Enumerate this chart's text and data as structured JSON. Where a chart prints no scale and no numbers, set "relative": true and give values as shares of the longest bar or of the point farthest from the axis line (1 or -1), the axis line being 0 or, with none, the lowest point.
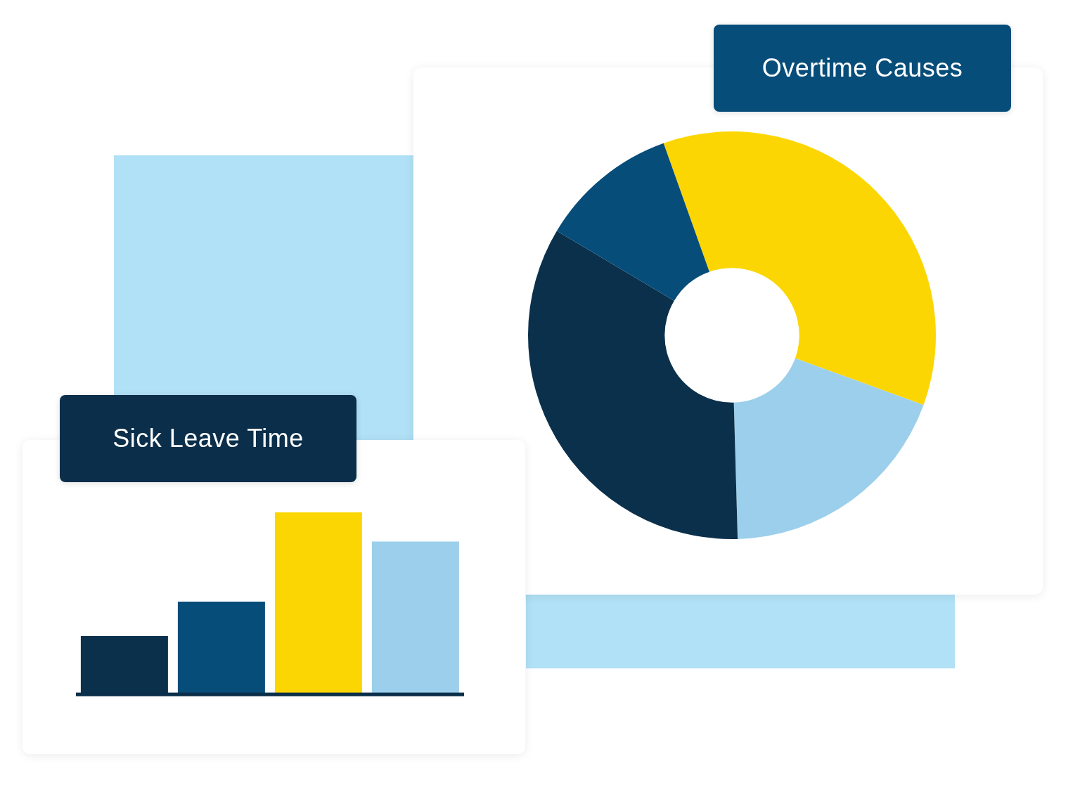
{
  "chart_data": [
    {
      "type": "donut",
      "title": "Overtime Causes",
      "categories": [
        null,
        null,
        null,
        null
      ],
      "values": [
        36,
        19,
        34,
        11
      ],
      "colors": [
        "#fcd602",
        "#9ccfeb",
        "#0b304b",
        "#074d7a"
      ]
    },
    {
      "type": "bar",
      "title": "Sick Leave Time",
      "categories": [
        null,
        null,
        null,
        null
      ],
      "values": [
        0.32,
        0.51,
        1,
        0.84
      ],
      "colors": [
        "#0b304b",
        "#074d7a",
        "#fcd602",
        "#9ccfeb"
      ],
      "relative": true,
      "tick_labels": false
    }
  ]
}
